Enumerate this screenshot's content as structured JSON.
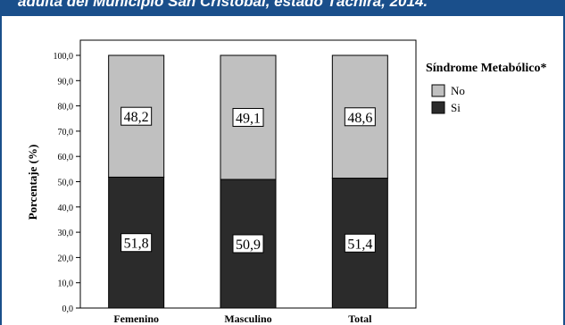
{
  "header": {
    "title": "adulta del Municipio San Cristóbal, estado Táchira, 2014."
  },
  "colors": {
    "header_bg": "#1a4f8b",
    "si": "#2b2b2b",
    "no": "#c0c0c0"
  },
  "chart_data": {
    "type": "bar",
    "stacked": true,
    "percent": true,
    "categories": [
      "Femenino",
      "Masculino",
      "Total"
    ],
    "series": [
      {
        "name": "Si",
        "values": [
          51.8,
          50.9,
          51.4
        ],
        "labels": [
          "51,8",
          "50,9",
          "51,4"
        ],
        "color": "#2b2b2b"
      },
      {
        "name": "No",
        "values": [
          48.2,
          49.1,
          48.6
        ],
        "labels": [
          "48,2",
          "49,1",
          "48,6"
        ],
        "color": "#c0c0c0"
      }
    ],
    "ylabel": "Porcentaje (%)",
    "xlabel": "",
    "ylim": [
      0,
      100
    ],
    "yticks": [
      0,
      10,
      20,
      30,
      40,
      50,
      60,
      70,
      80,
      90,
      100
    ],
    "ytick_labels": [
      "0,0",
      "10,0",
      "20,0",
      "30,0",
      "40,0",
      "50,0",
      "60,0",
      "70,0",
      "80,0",
      "90,0",
      "100,0"
    ],
    "legend": {
      "title": "Síndrome Metabólico*",
      "placement": "right",
      "entries": [
        "No",
        "Si"
      ]
    },
    "grid": false
  }
}
